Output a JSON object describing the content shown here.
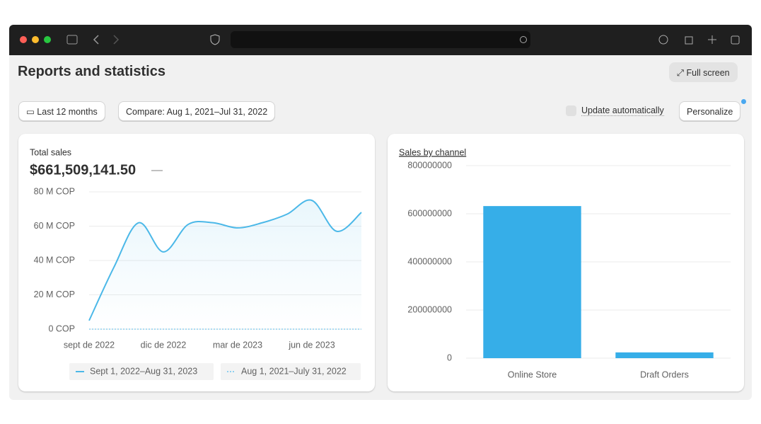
{
  "header": {
    "title": "Reports and statistics",
    "full_screen": "Full screen"
  },
  "toolbar": {
    "date_range": "Last 12 months",
    "compare": "Compare: Aug 1, 2021–Jul 31, 2022",
    "update_automatically": "Update automatically",
    "personalize": "Personalize"
  },
  "chart_data": [
    {
      "type": "line",
      "title": "Total sales",
      "total": "$661,509,141.50",
      "total_change": "—",
      "categories": [
        "sept de 2022",
        null,
        null,
        "dic de 2022",
        null,
        null,
        "mar de 2023",
        null,
        null,
        "jun de 2023",
        null,
        null
      ],
      "series": [
        {
          "name": "Sept 1, 2022–Aug 31, 2023",
          "color": "#4bb8e8",
          "values": [
            5,
            36,
            62,
            45,
            61,
            62,
            59,
            62,
            67,
            75,
            57,
            68
          ]
        },
        {
          "name": "Aug 1, 2021–July 31, 2022",
          "color": "#8fd0ef",
          "dashed": true,
          "values": [
            0,
            0,
            0,
            0,
            0,
            0,
            0,
            0,
            0,
            0,
            0,
            0
          ]
        }
      ],
      "ylim": [
        0,
        80
      ],
      "yticks": [
        {
          "value": 0,
          "label": "0 COP"
        },
        {
          "value": 20,
          "label": "20 M COP"
        },
        {
          "value": 40,
          "label": "40 M COP"
        },
        {
          "value": 60,
          "label": "60 M COP"
        },
        {
          "value": 80,
          "label": "80 M COP"
        }
      ],
      "grid": true
    },
    {
      "type": "bar",
      "title": "Sales by channel",
      "categories": [
        "Online Store",
        "Draft Orders"
      ],
      "values": [
        632000000,
        24000000
      ],
      "color": "#36aee8",
      "ylim": [
        0,
        800000000
      ],
      "yticks": [
        0,
        200000000,
        400000000,
        600000000,
        800000000
      ],
      "grid": true
    }
  ]
}
